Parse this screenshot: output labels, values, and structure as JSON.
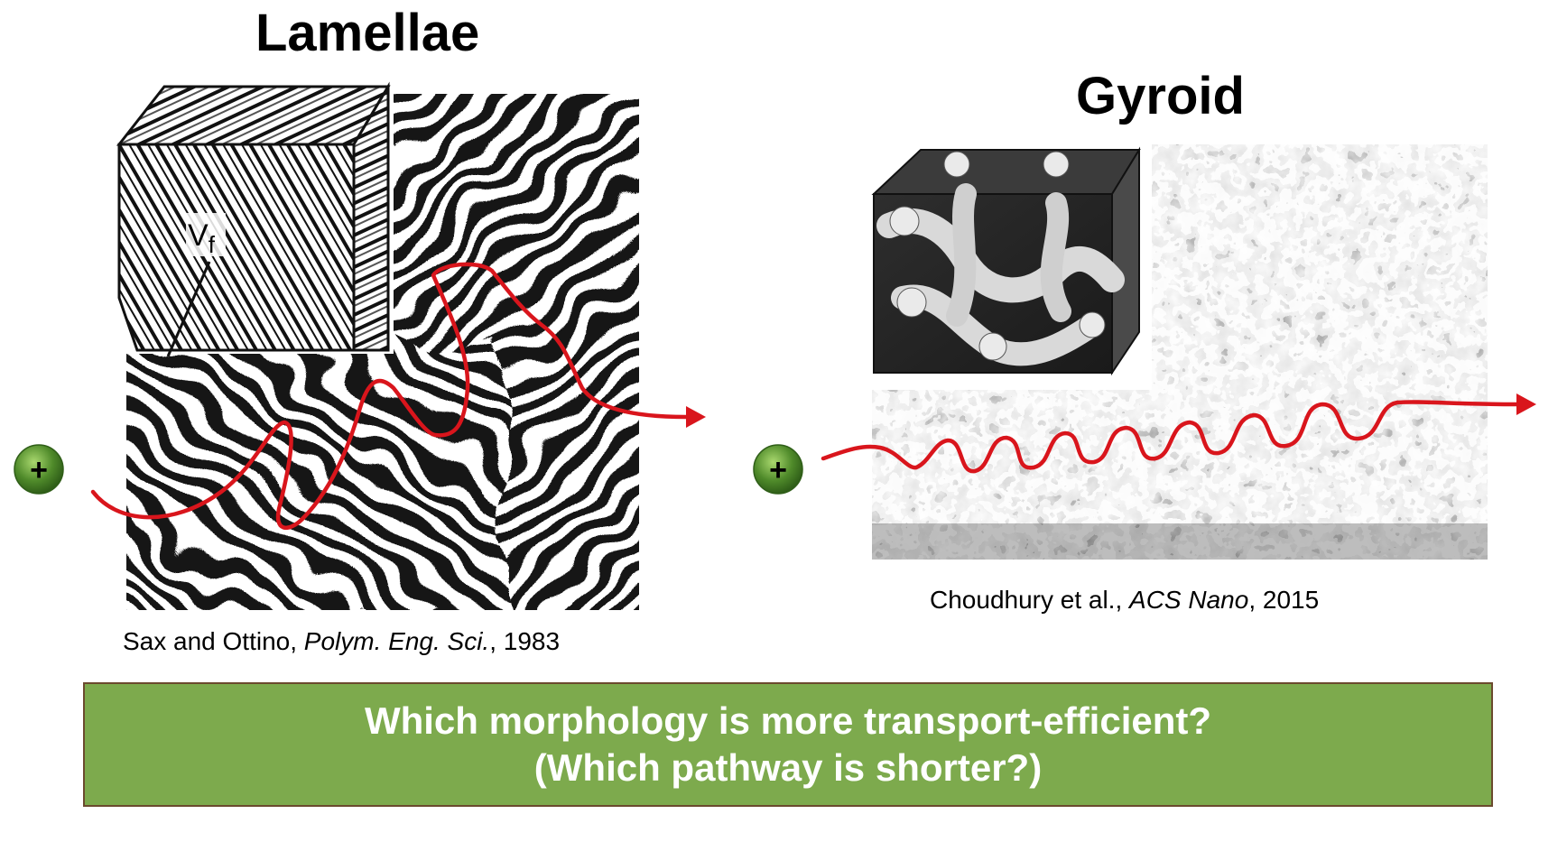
{
  "panels": {
    "lamellae": {
      "title": "Lamellae",
      "inset_label": "Vf",
      "citation": {
        "authors": "Sax and Ottino, ",
        "journal": "Polym. Eng. Sci.",
        "year": ", 1983"
      }
    },
    "gyroid": {
      "title": "Gyroid",
      "citation": {
        "authors": "Choudhury et al., ",
        "journal": "ACS Nano",
        "year": ", 2015"
      }
    }
  },
  "ion_symbol": "+",
  "question": {
    "line1": "Which morphology is more transport-efficient?",
    "line2": "(Which pathway is shorter?)"
  },
  "colors": {
    "pathway": "#d9151c",
    "ion": "#4f8a2a",
    "box_fill": "#7daa4d",
    "box_border": "#6b4a2e"
  },
  "icons": {
    "ion": "green-plus-sphere-icon",
    "arrow": "red-arrow-head-icon"
  }
}
